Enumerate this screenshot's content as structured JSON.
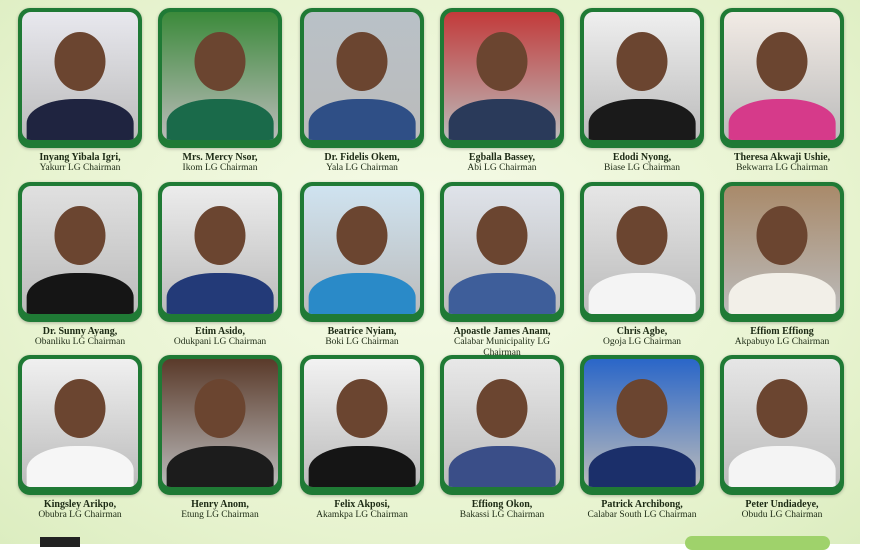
{
  "colors": {
    "frame": "#1f7a35",
    "background": "#e7f3cf"
  },
  "officials": [
    {
      "name": "Inyang Yibala Igri,",
      "role": "Yakurr LG Chairman",
      "bg": "#e8e8ee",
      "suit": "#1f2440"
    },
    {
      "name": "Mrs. Mercy Nsor,",
      "role": "Ikom LG Chairman",
      "bg": "#3b8a3a",
      "suit": "#1a6a4a"
    },
    {
      "name": "Dr. Fidelis Okem,",
      "role": "Yala LG Chairman",
      "bg": "#b9c1c7",
      "suit": "#2f4f86"
    },
    {
      "name": "Egballa Bassey,",
      "role": "Abi LG Chairman",
      "bg": "#c23a3a",
      "suit": "#2a3a5a"
    },
    {
      "name": "Edodi Nyong,",
      "role": "Biase LG Chairman",
      "bg": "#efefef",
      "suit": "#1a1a1a"
    },
    {
      "name": "Theresa Akwaji Ushie,",
      "role": "Bekwarra LG Chairman",
      "bg": "#f2ebe5",
      "suit": "#d63a8a"
    },
    {
      "name": "Dr. Sunny Ayang,",
      "role": "Obanliku LG Chairman",
      "bg": "#e0e0e0",
      "suit": "#151515"
    },
    {
      "name": "Etim Asido,",
      "role": "Odukpani LG Chairman",
      "bg": "#ececec",
      "suit": "#233a78"
    },
    {
      "name": "Beatrice Nyiam,",
      "role": "Boki LG Chairman",
      "bg": "#cfe3f0",
      "suit": "#2a8ac8"
    },
    {
      "name": "Apoastle James Anam,",
      "role": "Calabar Municipality LG Chairman",
      "bg": "#dfe3ea",
      "suit": "#3e5e9a"
    },
    {
      "name": "Chris Agbe,",
      "role": "Ogoja LG Chairman",
      "bg": "#e6e6e6",
      "suit": "#f4f4f4"
    },
    {
      "name": "Effiom Effiong",
      "role": "Akpabuyo LG Chairman",
      "bg": "#a98a6a",
      "suit": "#f2efe8"
    },
    {
      "name": "Kingsley Arikpo,",
      "role": "Obubra LG Chairman",
      "bg": "#f0f0f0",
      "suit": "#f6f6f6"
    },
    {
      "name": "Henry Anom,",
      "role": "Etung LG Chairman",
      "bg": "#5a3a2a",
      "suit": "#1c1c1c"
    },
    {
      "name": "Felix Akposi,",
      "role": "Akamkpa LG Chairman",
      "bg": "#f2f2f2",
      "suit": "#151515"
    },
    {
      "name": "Effiong Okon,",
      "role": "Bakassi LG Chairman",
      "bg": "#e8e8e8",
      "suit": "#3a4e88"
    },
    {
      "name": "Patrick Archibong,",
      "role": "Calabar South LG Chairman",
      "bg": "#2a66c8",
      "suit": "#1b2f6a"
    },
    {
      "name": "Peter Undiadeye,",
      "role": "Obudu LG Chairman",
      "bg": "#e6e6e6",
      "suit": "#f4f4f4"
    }
  ]
}
